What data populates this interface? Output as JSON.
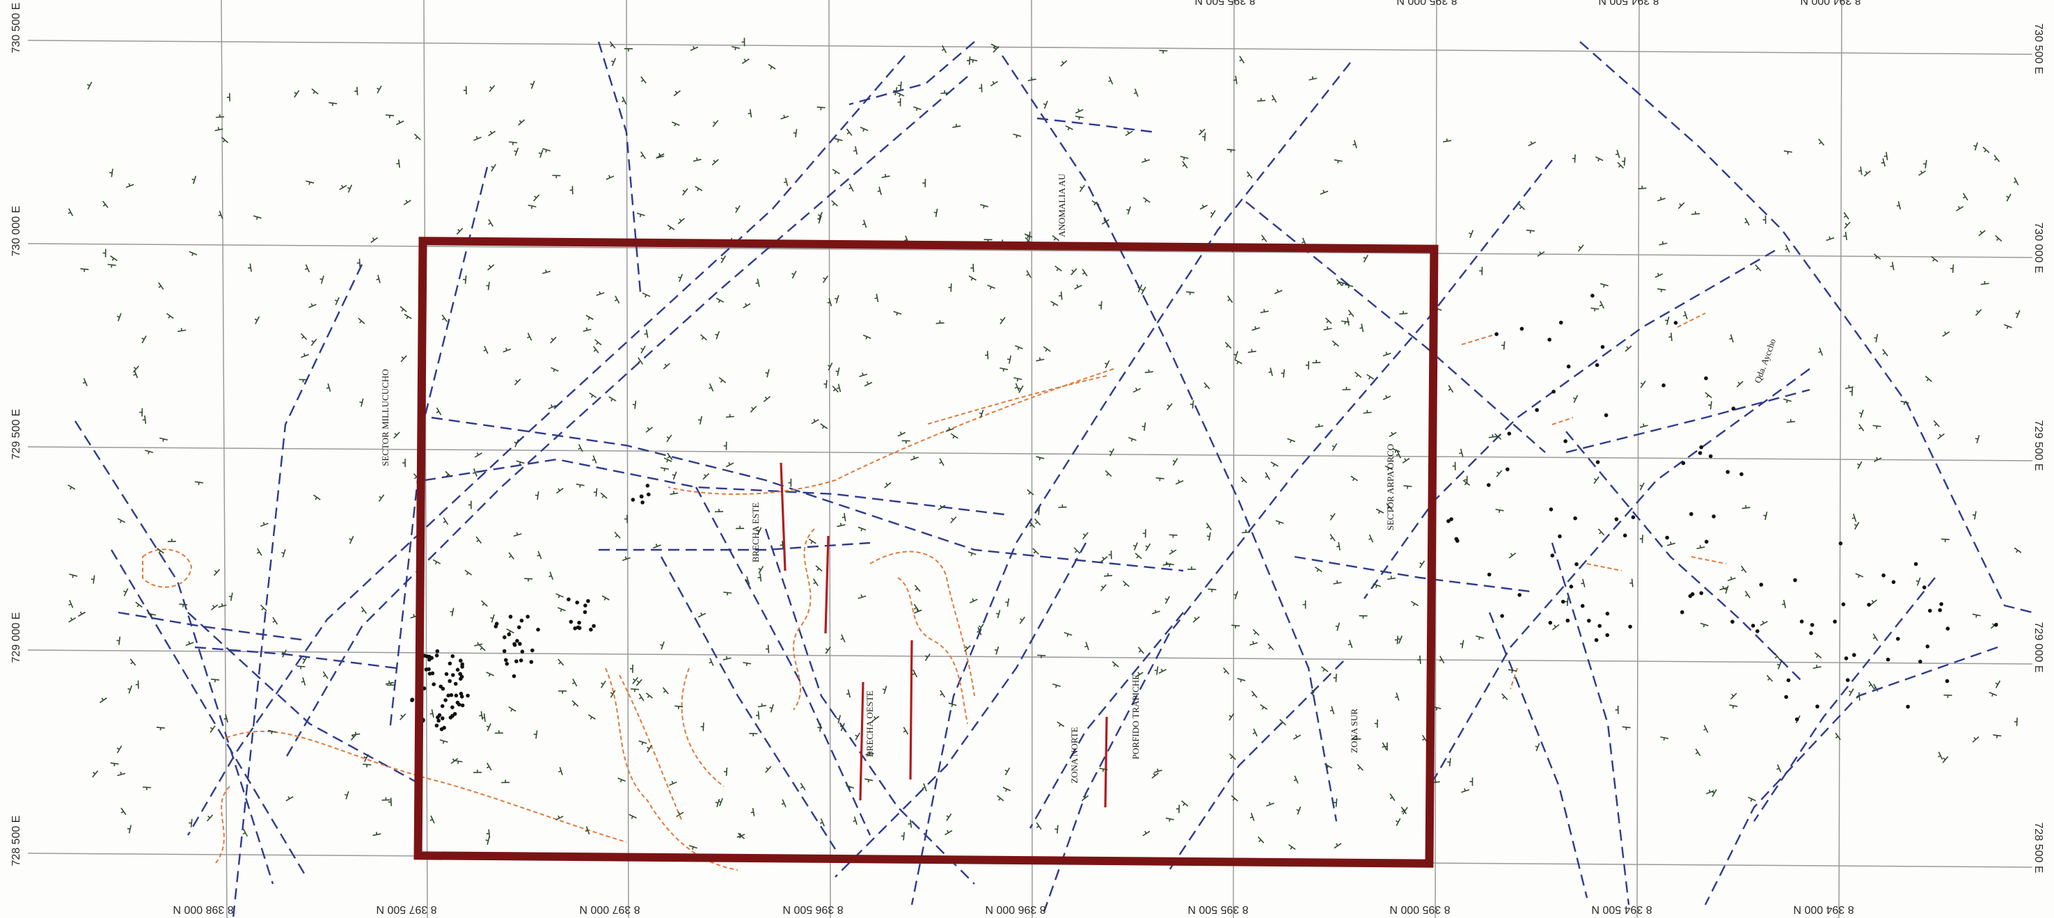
{
  "map": {
    "grid_color": "#9a9a9a",
    "fault_color": "#2e3a8c",
    "contact_color": "#e07a3a",
    "vein_color": "#b01e1e",
    "highlight_box_color": "#7a1414",
    "structure_symbol_color": "#2f4a2a",
    "sample_point_color": "#111111"
  },
  "coordinates": {
    "northing_bottom": [
      "8 398 000 N",
      "8 397 500 N",
      "8 397 000 N",
      "8 396 500 N",
      "8 396 000 N",
      "8 395 500 N",
      "8 395 000 N",
      "8 394 500 N",
      "8 394 000 N"
    ],
    "northing_top_partial": [
      "8 395 500 N",
      "8 395 000 N",
      "8 394 500 N",
      "8 394 000 N"
    ],
    "easting_left": [
      "730 500 E",
      "730 000 E",
      "729 500 E",
      "729 000 E",
      "728 500 E"
    ],
    "easting_right": [
      "730 500 E",
      "730 000 E",
      "729 500 E",
      "729 000 E",
      "728 500 E"
    ]
  },
  "labels": {
    "sector_millucucho": "SECTOR MILLUCUCHO",
    "sector_arpa_orco": "SECTOR ARPA ORCO",
    "anomalia_au": "ANOMALIA AU",
    "brecha_este": "BRECHA ESTE",
    "brecha_oeste": "BRECHA OESTE",
    "zona_norte": "ZONA NORTE",
    "porfido_trapiche": "PORFIDO TRAPICHE",
    "zona_sur": "ZONA SUR",
    "qda_ayccho": "Qda. Ayccho"
  }
}
